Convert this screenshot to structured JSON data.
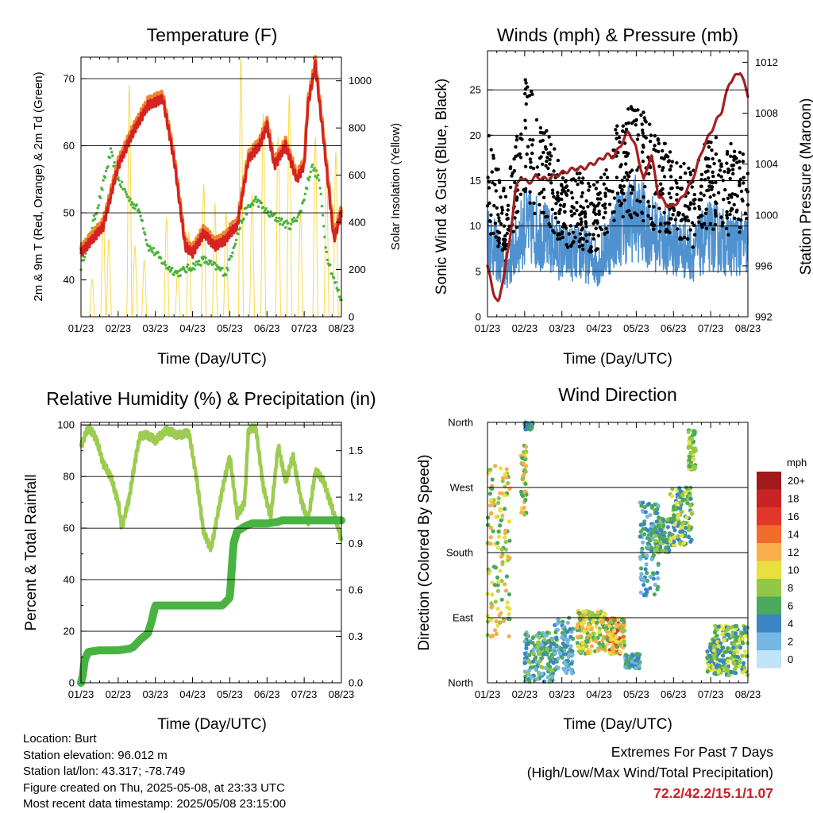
{
  "chart_data": [
    {
      "type": "line",
      "title": "Temperature (F)",
      "xlabel": "Time (Day/UTC)",
      "ylabel": "2m & 9m T (Red, Orange) & 2m Td (Green)",
      "ylabel_right": "Solar Insolation (Yellow)",
      "x_ticks": [
        "01/23",
        "02/23",
        "03/23",
        "04/23",
        "05/23",
        "06/23",
        "07/23",
        "08/23"
      ],
      "y_ticks": [
        40,
        50,
        60,
        70
      ],
      "y_ticks_right": [
        0,
        200,
        400,
        600,
        800,
        1000
      ],
      "ylim": [
        34.5,
        73.2
      ],
      "ylim_right": [
        0,
        1100
      ],
      "colors": {
        "t2m": "#d52222",
        "t9m": "#f0852a",
        "td": "#4bb23c",
        "solar": "#f7d94c"
      },
      "series": [
        {
          "key": "t2m",
          "x": [
            0,
            0.6,
            1,
            1.4,
            1.8,
            2.2,
            2.5,
            2.8,
            3,
            3.3,
            3.6,
            3.9,
            4,
            4.2,
            4.5,
            4.8,
            5,
            5.2,
            5.5,
            5.8,
            6,
            6.1,
            6.3,
            6.5,
            6.8,
            7
          ],
          "values": [
            44,
            48,
            57,
            62,
            66,
            67,
            58,
            45,
            44,
            47,
            45,
            46,
            47,
            48,
            58,
            60,
            63,
            57,
            60,
            55,
            57,
            66,
            72,
            62,
            46,
            50
          ]
        },
        {
          "key": "td",
          "x": [
            0,
            0.5,
            0.8,
            1,
            1.3,
            1.6,
            1.8,
            2.0,
            2.3,
            2.6,
            3,
            3.3,
            3.6,
            3.9,
            4.1,
            4.4,
            4.7,
            5,
            5.3,
            5.6,
            5.9,
            6.2,
            6.4,
            6.6,
            6.8,
            7
          ],
          "values": [
            42,
            52,
            59,
            55,
            52,
            50,
            45,
            44,
            42,
            41,
            42,
            43,
            42,
            41,
            45,
            50,
            52,
            50,
            49,
            48,
            50,
            57,
            55,
            44,
            40,
            37
          ]
        },
        {
          "key": "solar",
          "cycles": [
            [
              0.3,
              160
            ],
            [
              0.6,
              420
            ],
            [
              0.75,
              330
            ],
            [
              1.3,
              980
            ],
            [
              1.45,
              300
            ],
            [
              1.7,
              240
            ],
            [
              2.3,
              420
            ],
            [
              2.6,
              200
            ],
            [
              2.9,
              360
            ],
            [
              3.3,
              560
            ],
            [
              3.6,
              480
            ],
            [
              3.9,
              440
            ],
            [
              4.3,
              1100
            ],
            [
              4.6,
              520
            ],
            [
              4.9,
              860
            ],
            [
              5.3,
              760
            ],
            [
              5.6,
              940
            ],
            [
              5.9,
              440
            ],
            [
              6.3,
              760
            ],
            [
              6.6,
              620
            ],
            [
              6.85,
              700
            ]
          ]
        }
      ]
    },
    {
      "type": "line",
      "title": "Winds (mph) & Pressure (mb)",
      "xlabel": "Time (Day/UTC)",
      "ylabel": "Sonic Wind & Gust (Blue, Black)",
      "ylabel_right": "Station Pressure (Maroon)",
      "x_ticks": [
        "01/23",
        "02/23",
        "03/23",
        "04/23",
        "05/23",
        "06/23",
        "07/23",
        "08/23"
      ],
      "y_ticks": [
        0,
        5,
        10,
        15,
        20,
        25
      ],
      "y_ticks_right": [
        992,
        996,
        1000,
        1004,
        1008,
        1012
      ],
      "ylim": [
        0,
        29.3
      ],
      "ylim_right": [
        992,
        1012.9
      ],
      "colors": {
        "wind": "#4f92cf",
        "gust": "#000000",
        "pressure": "#a51f22"
      },
      "series": [
        {
          "key": "pressure",
          "x": [
            0,
            0.15,
            0.3,
            0.45,
            0.6,
            0.75,
            0.9,
            1.1,
            1.3,
            1.6,
            2,
            2.3,
            2.6,
            3,
            3.2,
            3.4,
            3.6,
            3.8,
            4,
            4.2,
            4.4,
            4.6,
            4.9,
            5.2,
            5.5,
            5.8,
            6.1,
            6.3,
            6.5,
            6.8,
            7
          ],
          "values": [
            996,
            994,
            993,
            995.5,
            998,
            1002,
            1003,
            1002.5,
            1003,
            1002.8,
            1003.3,
            1003.6,
            1003.7,
            1004.3,
            1004.7,
            1004.6,
            1005.6,
            1006.6,
            1005.2,
            1002.7,
            1004.8,
            1001.5,
            1000.6,
            1001.2,
            1002.7,
            1005.3,
            1007.1,
            1008.2,
            1010.4,
            1011.3,
            1009.4
          ]
        },
        {
          "key": "wind_base",
          "x": [
            0,
            0.5,
            1,
            1.5,
            2,
            2.5,
            3,
            3.5,
            4,
            4.5,
            5,
            5.5,
            6,
            6.5,
            7
          ],
          "values": [
            9,
            5,
            10,
            9,
            7,
            7,
            6,
            10,
            11,
            9,
            8,
            7,
            9,
            8,
            8
          ]
        },
        {
          "key": "gust_base",
          "x": [
            0,
            0.5,
            1,
            1.5,
            2,
            2.5,
            3,
            3.5,
            4,
            4.5,
            5,
            5.5,
            6,
            6.5,
            7
          ],
          "values": [
            14,
            9,
            18,
            15,
            11,
            11,
            10,
            15,
            16,
            14,
            12,
            11,
            14,
            13,
            12
          ]
        }
      ]
    },
    {
      "type": "line",
      "title": "Relative Humidity (%) & Precipitation (in)",
      "xlabel": "Time (Day/UTC)",
      "ylabel": "Percent & Total Rainfall",
      "x_ticks": [
        "01/23",
        "02/23",
        "03/23",
        "04/23",
        "05/23",
        "06/23",
        "07/23",
        "08/23"
      ],
      "y_ticks": [
        0,
        20,
        40,
        60,
        80,
        100
      ],
      "y_ticks_right": [
        "0.0",
        "0.3",
        "0.6",
        "0.9",
        "1.2",
        "1.5"
      ],
      "ylim": [
        0,
        101
      ],
      "ylim_right": [
        0,
        1.683
      ],
      "colors": {
        "rh": "#9ccc50",
        "precip": "#49b342"
      },
      "series": [
        {
          "key": "rh",
          "x": [
            0,
            0.2,
            0.4,
            0.6,
            0.8,
            1,
            1.1,
            1.3,
            1.5,
            1.6,
            1.8,
            2,
            2.3,
            2.6,
            2.9,
            3.1,
            3.3,
            3.5,
            3.8,
            4,
            4.2,
            4.4,
            4.5,
            4.7,
            4.9,
            5.1,
            5.3,
            5.5,
            5.7,
            5.9,
            6.1,
            6.3,
            6.5,
            6.7,
            6.9,
            7
          ],
          "values": [
            92,
            99,
            95,
            85,
            80,
            70,
            60,
            72,
            90,
            96,
            96,
            94,
            98,
            96,
            97,
            80,
            58,
            52,
            75,
            88,
            65,
            70,
            98,
            99,
            76,
            64,
            92,
            78,
            88,
            72,
            62,
            82,
            79,
            70,
            61,
            55
          ]
        },
        {
          "key": "precip",
          "x": [
            0,
            0.05,
            0.1,
            0.2,
            0.5,
            1,
            1.3,
            1.4,
            1.6,
            1.8,
            1.9,
            2,
            2.3,
            3,
            3.8,
            4,
            4.1,
            4.2,
            4.4,
            4.6,
            5,
            5.3,
            5.4,
            6,
            7
          ],
          "values": [
            0,
            0.05,
            0.15,
            0.2,
            0.21,
            0.21,
            0.22,
            0.23,
            0.28,
            0.32,
            0.4,
            0.5,
            0.5,
            0.5,
            0.5,
            0.55,
            0.9,
            0.98,
            1.01,
            1.03,
            1.03,
            1.04,
            1.05,
            1.05,
            1.05
          ]
        }
      ]
    },
    {
      "type": "scatter",
      "title": "Wind Direction",
      "xlabel": "Time (Day/UTC)",
      "ylabel": "Direction (Colored By Speed)",
      "x_ticks": [
        "01/23",
        "02/23",
        "03/23",
        "04/23",
        "05/23",
        "06/23",
        "07/23",
        "08/23"
      ],
      "y_ticks": [
        "North",
        "East",
        "South",
        "West",
        "North"
      ],
      "ylim": [
        0,
        360
      ],
      "legend": {
        "unit": "mph",
        "labels": [
          "20+",
          "18",
          "16",
          "14",
          "12",
          "10",
          "8",
          "6",
          "4",
          "2",
          "0"
        ],
        "colors": [
          "#a01a1d",
          "#c92326",
          "#e1372a",
          "#f26c2b",
          "#f9ad4b",
          "#e8e13d",
          "#92c846",
          "#4aa95c",
          "#3a85c2",
          "#76b7e3",
          "#bfe3f7"
        ]
      },
      "clusters": [
        {
          "x": [
            0,
            0.6
          ],
          "dir": [
            60,
            300
          ],
          "speed": [
            6,
            14
          ]
        },
        {
          "x": [
            0.9,
            1.05
          ],
          "dir": [
            230,
            330
          ],
          "speed": [
            6,
            14
          ]
        },
        {
          "x": [
            1,
            1.2
          ],
          "dir": [
            350,
            360
          ],
          "speed": [
            4,
            8
          ]
        },
        {
          "x": [
            1.0,
            1.8
          ],
          "dir": [
            0,
            70
          ],
          "speed": [
            2,
            10
          ]
        },
        {
          "x": [
            1.8,
            2.3
          ],
          "dir": [
            10,
            90
          ],
          "speed": [
            2,
            8
          ]
        },
        {
          "x": [
            2.4,
            3.2
          ],
          "dir": [
            40,
            100
          ],
          "speed": [
            6,
            14
          ]
        },
        {
          "x": [
            3.2,
            3.7
          ],
          "dir": [
            40,
            90
          ],
          "speed": [
            6,
            18
          ]
        },
        {
          "x": [
            3.7,
            4.1
          ],
          "dir": [
            20,
            40
          ],
          "speed": [
            2,
            8
          ]
        },
        {
          "x": [
            4.1,
            4.6
          ],
          "dir": [
            120,
            250
          ],
          "speed": [
            2,
            8
          ]
        },
        {
          "x": [
            4.5,
            4.9
          ],
          "dir": [
            180,
            230
          ],
          "speed": [
            4,
            10
          ]
        },
        {
          "x": [
            4.9,
            5.5
          ],
          "dir": [
            190,
            270
          ],
          "speed": [
            4,
            12
          ]
        },
        {
          "x": [
            5.4,
            5.6
          ],
          "dir": [
            290,
            350
          ],
          "speed": [
            6,
            12
          ]
        },
        {
          "x": [
            5.9,
            6.2
          ],
          "dir": [
            15,
            60
          ],
          "speed": [
            4,
            12
          ]
        },
        {
          "x": [
            6.1,
            7
          ],
          "dir": [
            10,
            80
          ],
          "speed": [
            4,
            12
          ]
        }
      ]
    }
  ],
  "station_info": {
    "location": "Location: Burt",
    "elevation": "Station elevation: 96.012 m",
    "latlon": "Station lat/lon: 43.317; -78.749",
    "created": "Figure created on Thu, 2025-05-08, at 23:33 UTC",
    "latest": "Most recent data timestamp: 2025/05/08 23:15:00"
  },
  "extremes": {
    "heading": "Extremes For Past 7 Days",
    "subheading": "(High/Low/Max Wind/Total Precipitation)",
    "values": "72.2/42.2/15.1/1.07"
  }
}
